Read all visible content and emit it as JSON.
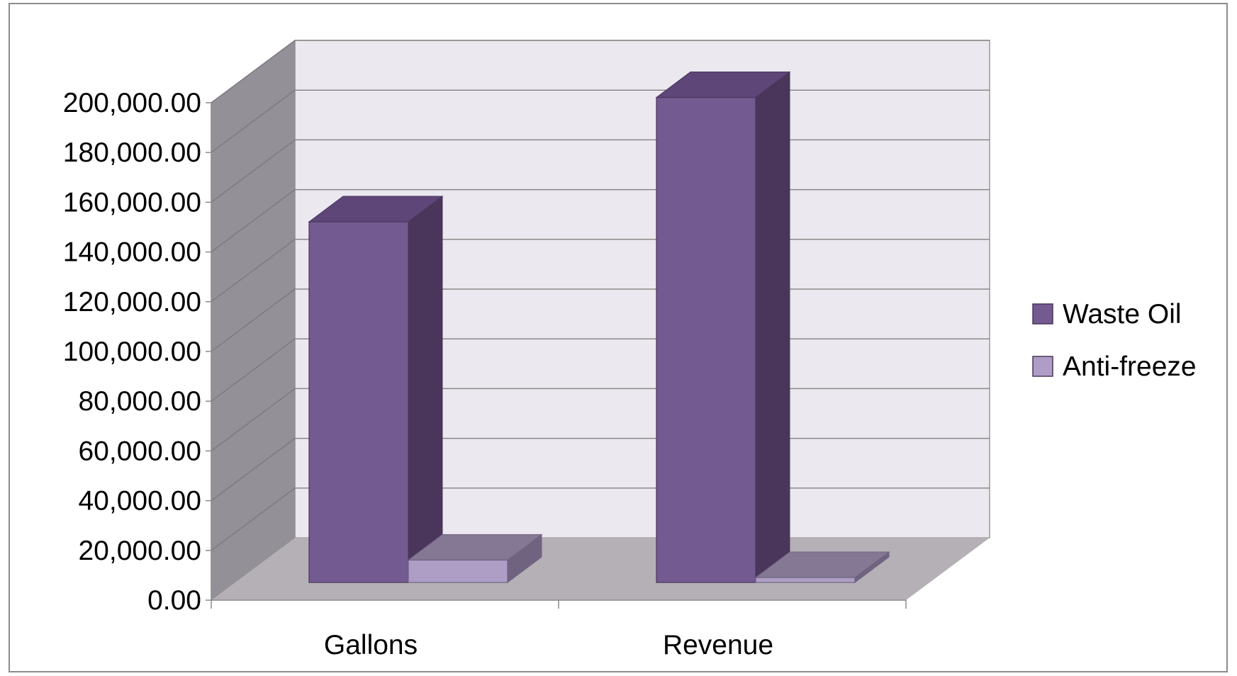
{
  "chart_data": {
    "type": "bar",
    "style": "3d-clustered-column",
    "title": "",
    "xlabel": "",
    "ylabel": "",
    "categories": [
      "Gallons",
      "Revenue"
    ],
    "series": [
      {
        "name": "Waste Oil",
        "values": [
          145000,
          195000
        ],
        "color": "#735a90",
        "top_color": "#5e4679",
        "side_color": "#4a365b"
      },
      {
        "name": "Anti-freeze",
        "values": [
          9000,
          2000
        ],
        "color": "#ae9dc4",
        "top_color": "#857894",
        "side_color": "#6f6380"
      }
    ],
    "ylim": [
      0,
      200000
    ],
    "y_ticks": [
      "0.00",
      "20,000.00",
      "40,000.00",
      "60,000.00",
      "80,000.00",
      "100,000.00",
      "120,000.00",
      "140,000.00",
      "160,000.00",
      "180,000.00",
      "200,000.00"
    ],
    "grid": true,
    "legend_position": "right",
    "colors": {
      "back_wall": "#ebe8ef",
      "side_wall": "#949097",
      "floor": "#b5b0b6",
      "gridline": "#8a8a8a"
    }
  }
}
